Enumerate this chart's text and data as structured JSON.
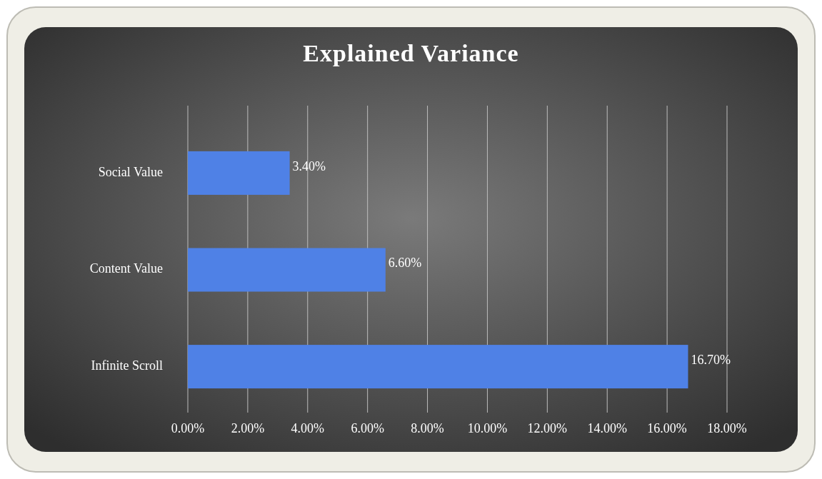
{
  "chart_data": {
    "type": "bar",
    "orientation": "horizontal",
    "title": "Explained Variance",
    "categories": [
      "Social Value",
      "Content Value",
      "Infinite Scroll"
    ],
    "values": [
      3.4,
      6.6,
      16.7
    ],
    "value_labels": [
      "3.40%",
      "6.60%",
      "16.70%"
    ],
    "color": "#4f81e6",
    "xlim": [
      0,
      18
    ],
    "xticks": [
      {
        "value": 0,
        "label": "0.00%"
      },
      {
        "value": 2,
        "label": "2.00%"
      },
      {
        "value": 4,
        "label": "4.00%"
      },
      {
        "value": 6,
        "label": "6.00%"
      },
      {
        "value": 8,
        "label": "8.00%"
      },
      {
        "value": 10,
        "label": "10.00%"
      },
      {
        "value": 12,
        "label": "12.00%"
      },
      {
        "value": 14,
        "label": "14.00%"
      },
      {
        "value": 16,
        "label": "16.00%"
      },
      {
        "value": 18,
        "label": "18.00%"
      }
    ],
    "grid": "x"
  }
}
